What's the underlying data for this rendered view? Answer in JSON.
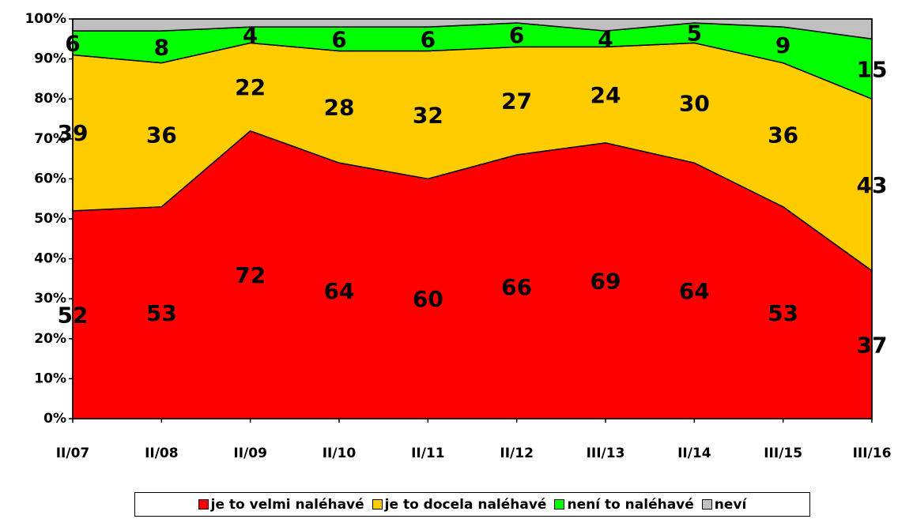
{
  "chart_data": {
    "type": "stacked_area",
    "categories": [
      "II/07",
      "II/08",
      "II/09",
      "II/10",
      "II/11",
      "II/12",
      "III/13",
      "II/14",
      "III/15",
      "III/16"
    ],
    "series": [
      {
        "name": "je to velmi naléhavé",
        "color": "#ff0000",
        "values": [
          52,
          53,
          72,
          64,
          60,
          66,
          69,
          64,
          53,
          37
        ]
      },
      {
        "name": "je to docela naléhavé",
        "color": "#ffcc00",
        "values": [
          39,
          36,
          22,
          28,
          32,
          27,
          24,
          30,
          36,
          43
        ]
      },
      {
        "name": "není to naléhavé",
        "color": "#00ff00",
        "values": [
          6,
          8,
          4,
          6,
          6,
          6,
          4,
          5,
          9,
          15
        ]
      },
      {
        "name": "neví",
        "color": "#c0c0c0",
        "values": [
          3,
          3,
          2,
          2,
          2,
          1,
          3,
          1,
          2,
          5
        ]
      }
    ],
    "data_labels": [
      true,
      true,
      true,
      false
    ],
    "ylim": [
      0,
      100
    ],
    "yticks": [
      {
        "value": 0,
        "label": "0%"
      },
      {
        "value": 10,
        "label": "10%"
      },
      {
        "value": 20,
        "label": "20%"
      },
      {
        "value": 30,
        "label": "30%"
      },
      {
        "value": 40,
        "label": "40%"
      },
      {
        "value": 50,
        "label": "50%"
      },
      {
        "value": 60,
        "label": "60%"
      },
      {
        "value": 70,
        "label": "70%"
      },
      {
        "value": 80,
        "label": "80%"
      },
      {
        "value": 90,
        "label": "90%"
      },
      {
        "value": 100,
        "label": "100%"
      }
    ],
    "legend": "bottom",
    "grid": false
  }
}
